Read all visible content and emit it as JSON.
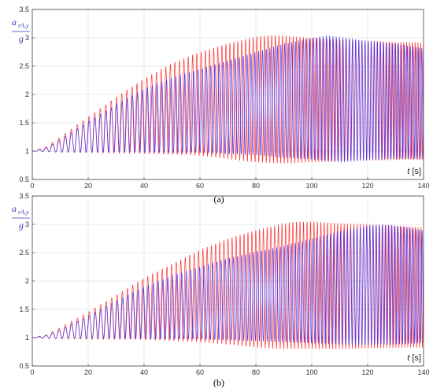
{
  "chart_data": [
    {
      "type": "line",
      "panel_label": "(a)",
      "ylabel_main": "a",
      "ylabel_sub": "rA,y",
      "ylabel_den": "g",
      "xlabel_var": "t",
      "xlabel_unit": "[s]",
      "xlim": [
        0,
        140
      ],
      "ylim": [
        0.5,
        3.5
      ],
      "x_ticks": [
        0,
        20,
        40,
        60,
        80,
        100,
        120,
        140
      ],
      "y_ticks": [
        0.5,
        1,
        1.5,
        2,
        2.5,
        3,
        3.5
      ],
      "grid": true,
      "colors": {
        "red": "#ff2a2a",
        "blue": "#3333ff"
      },
      "series": [
        {
          "color": "red",
          "upper_envelope": {
            "t": [
              0,
              5,
              10,
              20,
              30,
              40,
              50,
              60,
              70,
              80,
              85,
              90,
              100,
              110,
              120,
              130,
              140
            ],
            "y": [
              1.0,
              1.08,
              1.25,
              1.6,
              1.95,
              2.28,
              2.55,
              2.75,
              2.9,
              3.02,
              3.05,
              3.04,
              3.0,
              2.97,
              2.95,
              2.93,
              2.92
            ]
          },
          "lower_envelope": {
            "t": [
              0,
              10,
              20,
              40,
              60,
              70,
              80,
              90,
              100,
              110,
              120,
              130,
              140
            ],
            "y": [
              1.0,
              0.98,
              0.97,
              0.96,
              0.92,
              0.86,
              0.8,
              0.78,
              0.8,
              0.82,
              0.83,
              0.84,
              0.84
            ]
          },
          "cycles_per_second": [
            0.4,
            1.0
          ]
        },
        {
          "color": "blue",
          "upper_envelope": {
            "t": [
              0,
              5,
              10,
              20,
              30,
              40,
              50,
              60,
              70,
              80,
              90,
              100,
              105,
              110,
              120,
              130,
              140
            ],
            "y": [
              1.0,
              1.06,
              1.2,
              1.52,
              1.82,
              2.1,
              2.3,
              2.45,
              2.6,
              2.75,
              2.9,
              3.0,
              3.04,
              3.02,
              2.95,
              2.9,
              2.82
            ]
          },
          "lower_envelope": {
            "t": [
              0,
              10,
              20,
              40,
              60,
              80,
              90,
              100,
              110,
              120,
              130,
              140
            ],
            "y": [
              1.0,
              0.98,
              0.98,
              0.98,
              0.97,
              0.93,
              0.88,
              0.85,
              0.8,
              0.84,
              0.86,
              0.86
            ]
          },
          "cycles_per_second": [
            0.4,
            0.98
          ]
        }
      ]
    },
    {
      "type": "line",
      "panel_label": "(b)",
      "ylabel_main": "a",
      "ylabel_sub": "rA,y",
      "ylabel_den": "g",
      "xlabel_var": "t",
      "xlabel_unit": "[s]",
      "xlim": [
        0,
        140
      ],
      "ylim": [
        0.5,
        3.5
      ],
      "x_ticks": [
        0,
        20,
        40,
        60,
        80,
        100,
        120,
        140
      ],
      "y_ticks": [
        0.5,
        1,
        1.5,
        2,
        2.5,
        3,
        3.5
      ],
      "grid": true,
      "colors": {
        "red": "#ff2a2a",
        "blue": "#3333ff"
      },
      "series": [
        {
          "color": "red",
          "upper_envelope": {
            "t": [
              0,
              5,
              10,
              20,
              30,
              40,
              50,
              60,
              70,
              80,
              90,
              95,
              100,
              110,
              120,
              130,
              140
            ],
            "y": [
              1.0,
              1.05,
              1.18,
              1.45,
              1.75,
              2.05,
              2.3,
              2.55,
              2.75,
              2.9,
              3.02,
              3.05,
              3.05,
              3.02,
              3.0,
              2.98,
              2.95
            ]
          },
          "lower_envelope": {
            "t": [
              0,
              10,
              20,
              40,
              60,
              70,
              80,
              90,
              100,
              110,
              120,
              130,
              140
            ],
            "y": [
              1.0,
              0.98,
              0.97,
              0.97,
              0.92,
              0.88,
              0.82,
              0.8,
              0.8,
              0.8,
              0.81,
              0.82,
              0.82
            ]
          },
          "cycles_per_second": [
            0.4,
            0.97
          ]
        },
        {
          "color": "blue",
          "upper_envelope": {
            "t": [
              0,
              5,
              10,
              20,
              30,
              40,
              50,
              60,
              70,
              80,
              90,
              100,
              110,
              120,
              125,
              130,
              140
            ],
            "y": [
              1.0,
              1.04,
              1.14,
              1.38,
              1.65,
              1.9,
              2.1,
              2.25,
              2.4,
              2.52,
              2.62,
              2.75,
              2.88,
              2.98,
              3.0,
              2.98,
              2.9
            ]
          },
          "lower_envelope": {
            "t": [
              0,
              10,
              20,
              40,
              60,
              80,
              90,
              100,
              110,
              120,
              130,
              140
            ],
            "y": [
              1.0,
              0.99,
              0.99,
              0.98,
              0.97,
              0.94,
              0.92,
              0.9,
              0.88,
              0.87,
              0.88,
              0.9
            ]
          },
          "cycles_per_second": [
            0.4,
            0.95
          ]
        }
      ]
    }
  ]
}
